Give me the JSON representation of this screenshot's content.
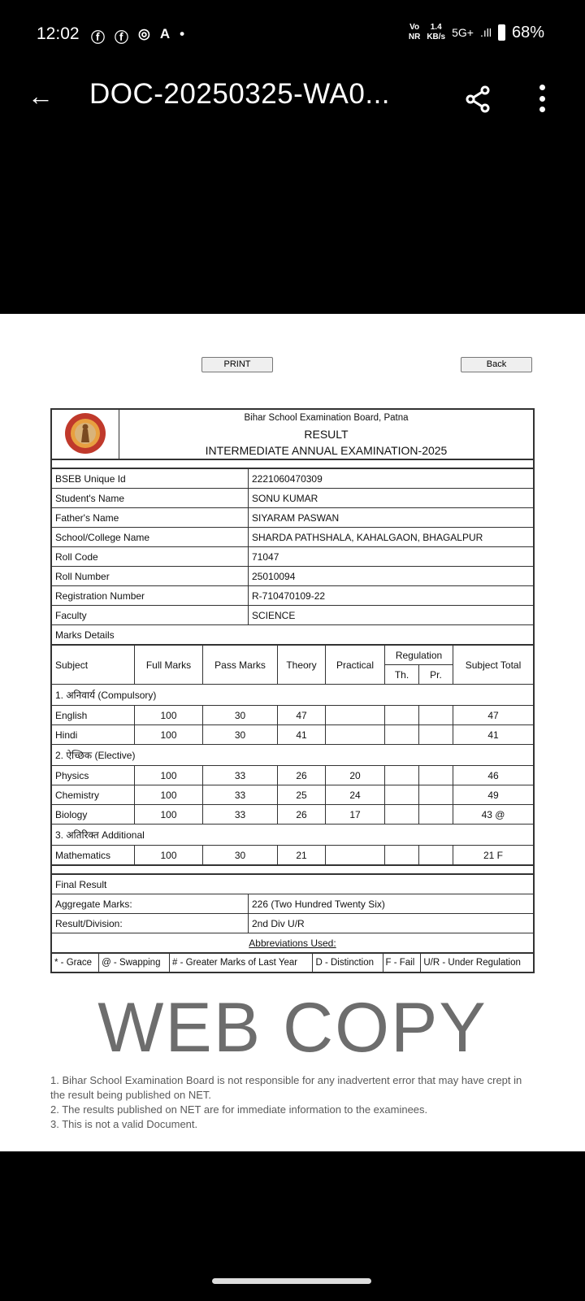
{
  "status_bar": {
    "time": "12:02",
    "icons": [
      "facebook-icon",
      "facebook-icon",
      "instagram-icon",
      "a-icon",
      "dot-icon"
    ],
    "network_top": "Vo",
    "network_bottom": "NR",
    "speed_top": "1.4",
    "speed_bottom": "KB/s",
    "net_type": "5G+",
    "battery": "68%"
  },
  "app_bar": {
    "title": "DOC-20250325-WA0..."
  },
  "buttons": {
    "print": "PRINT",
    "back": "Back"
  },
  "header": {
    "board": "Bihar School Examination Board, Patna",
    "result": "RESULT",
    "exam": "INTERMEDIATE ANNUAL EXAMINATION-2025"
  },
  "info": [
    {
      "label": "BSEB Unique Id",
      "value": "2221060470309"
    },
    {
      "label": "Student's Name",
      "value": "SONU KUMAR"
    },
    {
      "label": "Father's Name",
      "value": "SIYARAM PASWAN"
    },
    {
      "label": "School/College Name",
      "value": "SHARDA PATHSHALA, KAHALGAON, BHAGALPUR"
    },
    {
      "label": "Roll Code",
      "value": "71047"
    },
    {
      "label": "Roll Number",
      "value": "25010094"
    },
    {
      "label": "Registration Number",
      "value": "R-710470109-22"
    },
    {
      "label": "Faculty",
      "value": "SCIENCE"
    }
  ],
  "marks_details_label": "Marks Details",
  "columns": {
    "subject": "Subject",
    "full": "Full Marks",
    "pass": "Pass Marks",
    "theory": "Theory",
    "practical": "Practical",
    "regulation": "Regulation",
    "th": "Th.",
    "pr": "Pr.",
    "total": "Subject Total"
  },
  "sections": [
    {
      "title": "1. अनिवार्य (Compulsory)",
      "rows": [
        {
          "subject": "English",
          "full": "100",
          "pass": "30",
          "theory": "47",
          "practical": "",
          "th": "",
          "pr": "",
          "total": "47"
        },
        {
          "subject": "Hindi",
          "full": "100",
          "pass": "30",
          "theory": "41",
          "practical": "",
          "th": "",
          "pr": "",
          "total": "41"
        }
      ]
    },
    {
      "title": "2. ऐच्छिक (Elective)",
      "rows": [
        {
          "subject": "Physics",
          "full": "100",
          "pass": "33",
          "theory": "26",
          "practical": "20",
          "th": "",
          "pr": "",
          "total": "46"
        },
        {
          "subject": "Chemistry",
          "full": "100",
          "pass": "33",
          "theory": "25",
          "practical": "24",
          "th": "",
          "pr": "",
          "total": "49"
        },
        {
          "subject": "Biology",
          "full": "100",
          "pass": "33",
          "theory": "26",
          "practical": "17",
          "th": "",
          "pr": "",
          "total": "43 @"
        }
      ]
    },
    {
      "title": "3. अतिरिक्त Additional",
      "rows": [
        {
          "subject": "Mathematics",
          "full": "100",
          "pass": "30",
          "theory": "21",
          "practical": "",
          "th": "",
          "pr": "",
          "total": "21 F"
        }
      ]
    }
  ],
  "final": {
    "title": "Final Result",
    "aggregate_label": "Aggregate Marks:",
    "aggregate_value": "226 (Two Hundred Twenty Six)",
    "division_label": "Result/Division:",
    "division_value": "2nd Div U/R"
  },
  "abbreviations": {
    "title": "Abbreviations Used:",
    "items": [
      "* - Grace",
      "@ - Swapping",
      "# - Greater Marks of Last Year",
      "D - Distinction",
      "F - Fail",
      "U/R - Under Regulation"
    ]
  },
  "watermark": {
    "main": "WEB COPY",
    "lines": [
      "1. Bihar School Examination Board is not responsible for any inadvertent error that may have crept in the result being published on NET.",
      "2. The results published on NET are for immediate information to the examinees.",
      "3. This is not a valid Document."
    ]
  }
}
